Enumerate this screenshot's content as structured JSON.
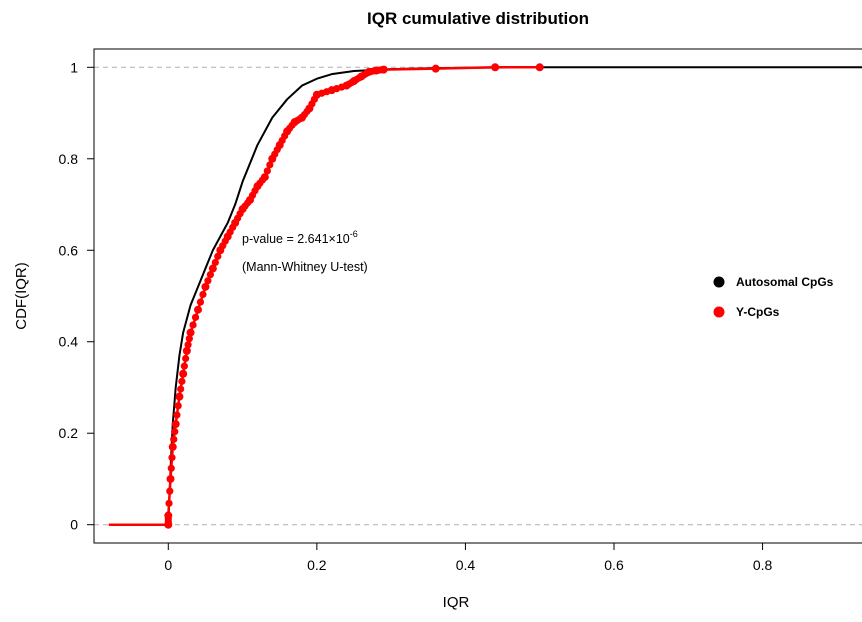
{
  "chart_data": {
    "type": "line",
    "title": "IQR cumulative distribution",
    "xlabel": "IQR",
    "ylabel": "CDF(IQR)",
    "xlim": [
      -0.1,
      0.95
    ],
    "ylim": [
      -0.04,
      1.04
    ],
    "x_ticks": [
      "0",
      "0.2",
      "0.4",
      "0.6",
      "0.8"
    ],
    "x_tick_values": [
      0,
      0.2,
      0.4,
      0.6,
      0.8
    ],
    "y_ticks": [
      "0",
      "0.2",
      "0.4",
      "0.6",
      "0.8",
      "1"
    ],
    "y_tick_values": [
      0,
      0.2,
      0.4,
      0.6,
      0.8,
      1
    ],
    "reference_lines_y": [
      0,
      1
    ],
    "grid": false,
    "legend_position": "right",
    "annotation": {
      "pvalue_prefix": "p-value = 2.641×10",
      "pvalue_exponent": "-6",
      "test": "(Mann-Whitney U-test)"
    },
    "series": [
      {
        "name": "Autosomal CpGs",
        "color": "#000000",
        "x": [
          -0.08,
          0.0,
          0.003,
          0.006,
          0.01,
          0.015,
          0.02,
          0.03,
          0.04,
          0.05,
          0.06,
          0.07,
          0.08,
          0.09,
          0.1,
          0.12,
          0.14,
          0.16,
          0.18,
          0.2,
          0.22,
          0.25,
          0.3,
          0.35,
          0.4,
          0.5,
          0.95
        ],
        "y": [
          0.0,
          0.0,
          0.12,
          0.22,
          0.3,
          0.37,
          0.42,
          0.48,
          0.52,
          0.56,
          0.6,
          0.63,
          0.66,
          0.7,
          0.75,
          0.83,
          0.89,
          0.93,
          0.96,
          0.975,
          0.985,
          0.992,
          0.996,
          0.998,
          0.999,
          1.0,
          1.0
        ]
      },
      {
        "name": "Y-CpGs",
        "color": "#ff0000",
        "x": [
          -0.08,
          0.0,
          0.0,
          0.003,
          0.006,
          0.01,
          0.015,
          0.02,
          0.025,
          0.03,
          0.04,
          0.05,
          0.06,
          0.07,
          0.08,
          0.09,
          0.1,
          0.11,
          0.12,
          0.13,
          0.14,
          0.15,
          0.16,
          0.17,
          0.18,
          0.19,
          0.2,
          0.22,
          0.24,
          0.25,
          0.26,
          0.27,
          0.28,
          0.29,
          0.36,
          0.44,
          0.5
        ],
        "y": [
          0.0,
          0.0,
          0.02,
          0.1,
          0.17,
          0.22,
          0.28,
          0.33,
          0.38,
          0.42,
          0.47,
          0.52,
          0.56,
          0.6,
          0.63,
          0.66,
          0.69,
          0.71,
          0.74,
          0.76,
          0.8,
          0.83,
          0.86,
          0.88,
          0.89,
          0.91,
          0.94,
          0.95,
          0.96,
          0.97,
          0.98,
          0.99,
          0.993,
          0.995,
          0.997,
          1.0,
          1.0
        ]
      }
    ]
  }
}
